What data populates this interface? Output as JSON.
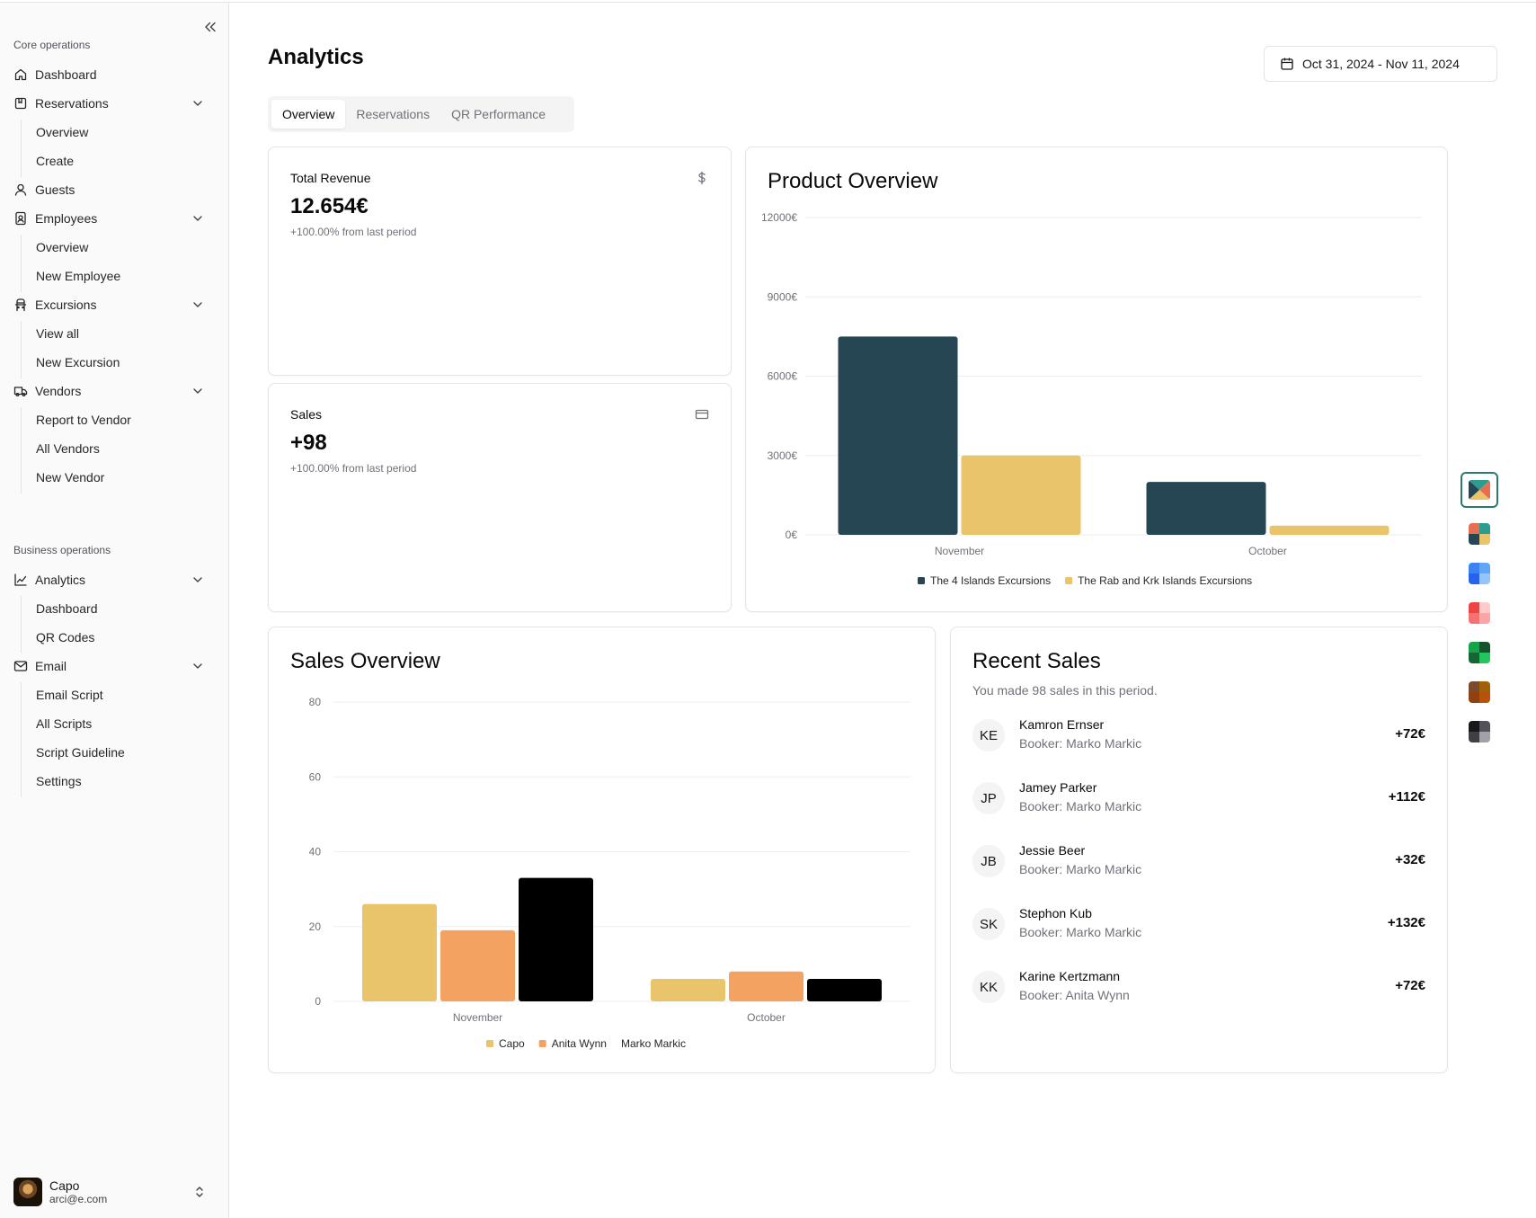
{
  "sidebar": {
    "groups": [
      {
        "label": "Core operations",
        "items": [
          {
            "label": "Dashboard",
            "icon": "home-icon"
          },
          {
            "label": "Reservations",
            "icon": "bookmark-icon",
            "children": [
              "Overview",
              "Create"
            ]
          },
          {
            "label": "Guests",
            "icon": "user-icon"
          },
          {
            "label": "Employees",
            "icon": "badge-icon",
            "children": [
              "Overview",
              "New Employee"
            ]
          },
          {
            "label": "Excursions",
            "icon": "bus-icon",
            "children": [
              "View all",
              "New Excursion"
            ]
          },
          {
            "label": "Vendors",
            "icon": "truck-icon",
            "children": [
              "Report to Vendor",
              "All Vendors",
              "New Vendor"
            ]
          }
        ]
      },
      {
        "label": "Business operations",
        "items": [
          {
            "label": "Analytics",
            "icon": "line-chart-icon",
            "children": [
              "Dashboard",
              "QR Codes"
            ]
          },
          {
            "label": "Email",
            "icon": "mail-icon",
            "children": [
              "Email Script",
              "All Scripts",
              "Script Guideline",
              "Settings"
            ]
          }
        ]
      }
    ],
    "user": {
      "name": "Capo",
      "email": "arci@e.com"
    }
  },
  "header": {
    "title": "Analytics",
    "date_range": "Oct 31, 2024 - Nov 11, 2024"
  },
  "tabs": [
    {
      "label": "Overview",
      "active": true
    },
    {
      "label": "Reservations",
      "active": false
    },
    {
      "label": "QR Performance",
      "active": false
    }
  ],
  "stats": {
    "revenue": {
      "label": "Total Revenue",
      "value": "12.654€",
      "change": "+100.00% from last period",
      "icon": "dollar-icon"
    },
    "sales": {
      "label": "Sales",
      "value": "+98",
      "change": "+100.00% from last period",
      "icon": "credit-card-icon"
    }
  },
  "product_overview": {
    "title": "Product Overview"
  },
  "sales_overview": {
    "title": "Sales Overview"
  },
  "recent_sales": {
    "title": "Recent Sales",
    "description": "You made 98 sales in this period.",
    "items": [
      {
        "initials": "KE",
        "name": "Kamron Ernser",
        "booker": "Booker: Marko Markic",
        "amount": "+72€"
      },
      {
        "initials": "JP",
        "name": "Jamey Parker",
        "booker": "Booker: Marko Markic",
        "amount": "+112€"
      },
      {
        "initials": "JB",
        "name": "Jessie Beer",
        "booker": "Booker: Marko Markic",
        "amount": "+32€"
      },
      {
        "initials": "SK",
        "name": "Stephon Kub",
        "booker": "Booker: Marko Markic",
        "amount": "+132€"
      },
      {
        "initials": "KK",
        "name": "Karine Kertzmann",
        "booker": "Booker: Anita Wynn",
        "amount": "+72€"
      }
    ]
  },
  "themes": [
    {
      "name": "multicolor",
      "colors": [
        "#2a9d8f",
        "#e76f51",
        "#e9c46a",
        "#264653"
      ],
      "selected": true
    },
    {
      "name": "coral-teal",
      "colors": [
        "#e76f51",
        "#2a9d8f",
        "#264653",
        "#e9c46a"
      ],
      "selected": false
    },
    {
      "name": "blue",
      "colors": [
        "#3b82f6",
        "#60a5fa",
        "#2563eb",
        "#93c5fd"
      ],
      "selected": false
    },
    {
      "name": "rose",
      "colors": [
        "#ef4444",
        "#fecaca",
        "#f87171",
        "#fca5a5"
      ],
      "selected": false
    },
    {
      "name": "green",
      "colors": [
        "#16a34a",
        "#14532d",
        "#166534",
        "#22c55e"
      ],
      "selected": false
    },
    {
      "name": "brown",
      "colors": [
        "#7c4a2d",
        "#a16207",
        "#92400e",
        "#b45309"
      ],
      "selected": false
    },
    {
      "name": "dark",
      "colors": [
        "#18181b",
        "#52525b",
        "#3f3f46",
        "#a1a1aa"
      ],
      "selected": false
    }
  ],
  "chart_data": [
    {
      "type": "bar",
      "title": "Product Overview",
      "categories": [
        "November",
        "October"
      ],
      "series": [
        {
          "name": "The 4 Islands Excursions",
          "color": "#264653",
          "values": [
            7500,
            2000
          ]
        },
        {
          "name": "The Rab and Krk Islands Excursions",
          "color": "#e9c46a",
          "values": [
            3000,
            350
          ]
        }
      ],
      "yticks": [
        "0€",
        "3000€",
        "6000€",
        "9000€",
        "12000€"
      ],
      "ylim": [
        0,
        12000
      ],
      "grid": true,
      "legend": "bottom"
    },
    {
      "type": "bar",
      "title": "Sales Overview",
      "categories": [
        "November",
        "October"
      ],
      "series": [
        {
          "name": "Capo",
          "color": "#e9c46a",
          "values": [
            26,
            6
          ]
        },
        {
          "name": "Anita Wynn",
          "color": "#f4a261",
          "values": [
            19,
            8
          ]
        },
        {
          "name": "Marko Markic",
          "color": "#000000",
          "values": [
            33,
            6
          ]
        }
      ],
      "yticks": [
        "0",
        "20",
        "40",
        "60",
        "80"
      ],
      "ylim": [
        0,
        80
      ],
      "grid": true,
      "legend": "bottom"
    }
  ]
}
